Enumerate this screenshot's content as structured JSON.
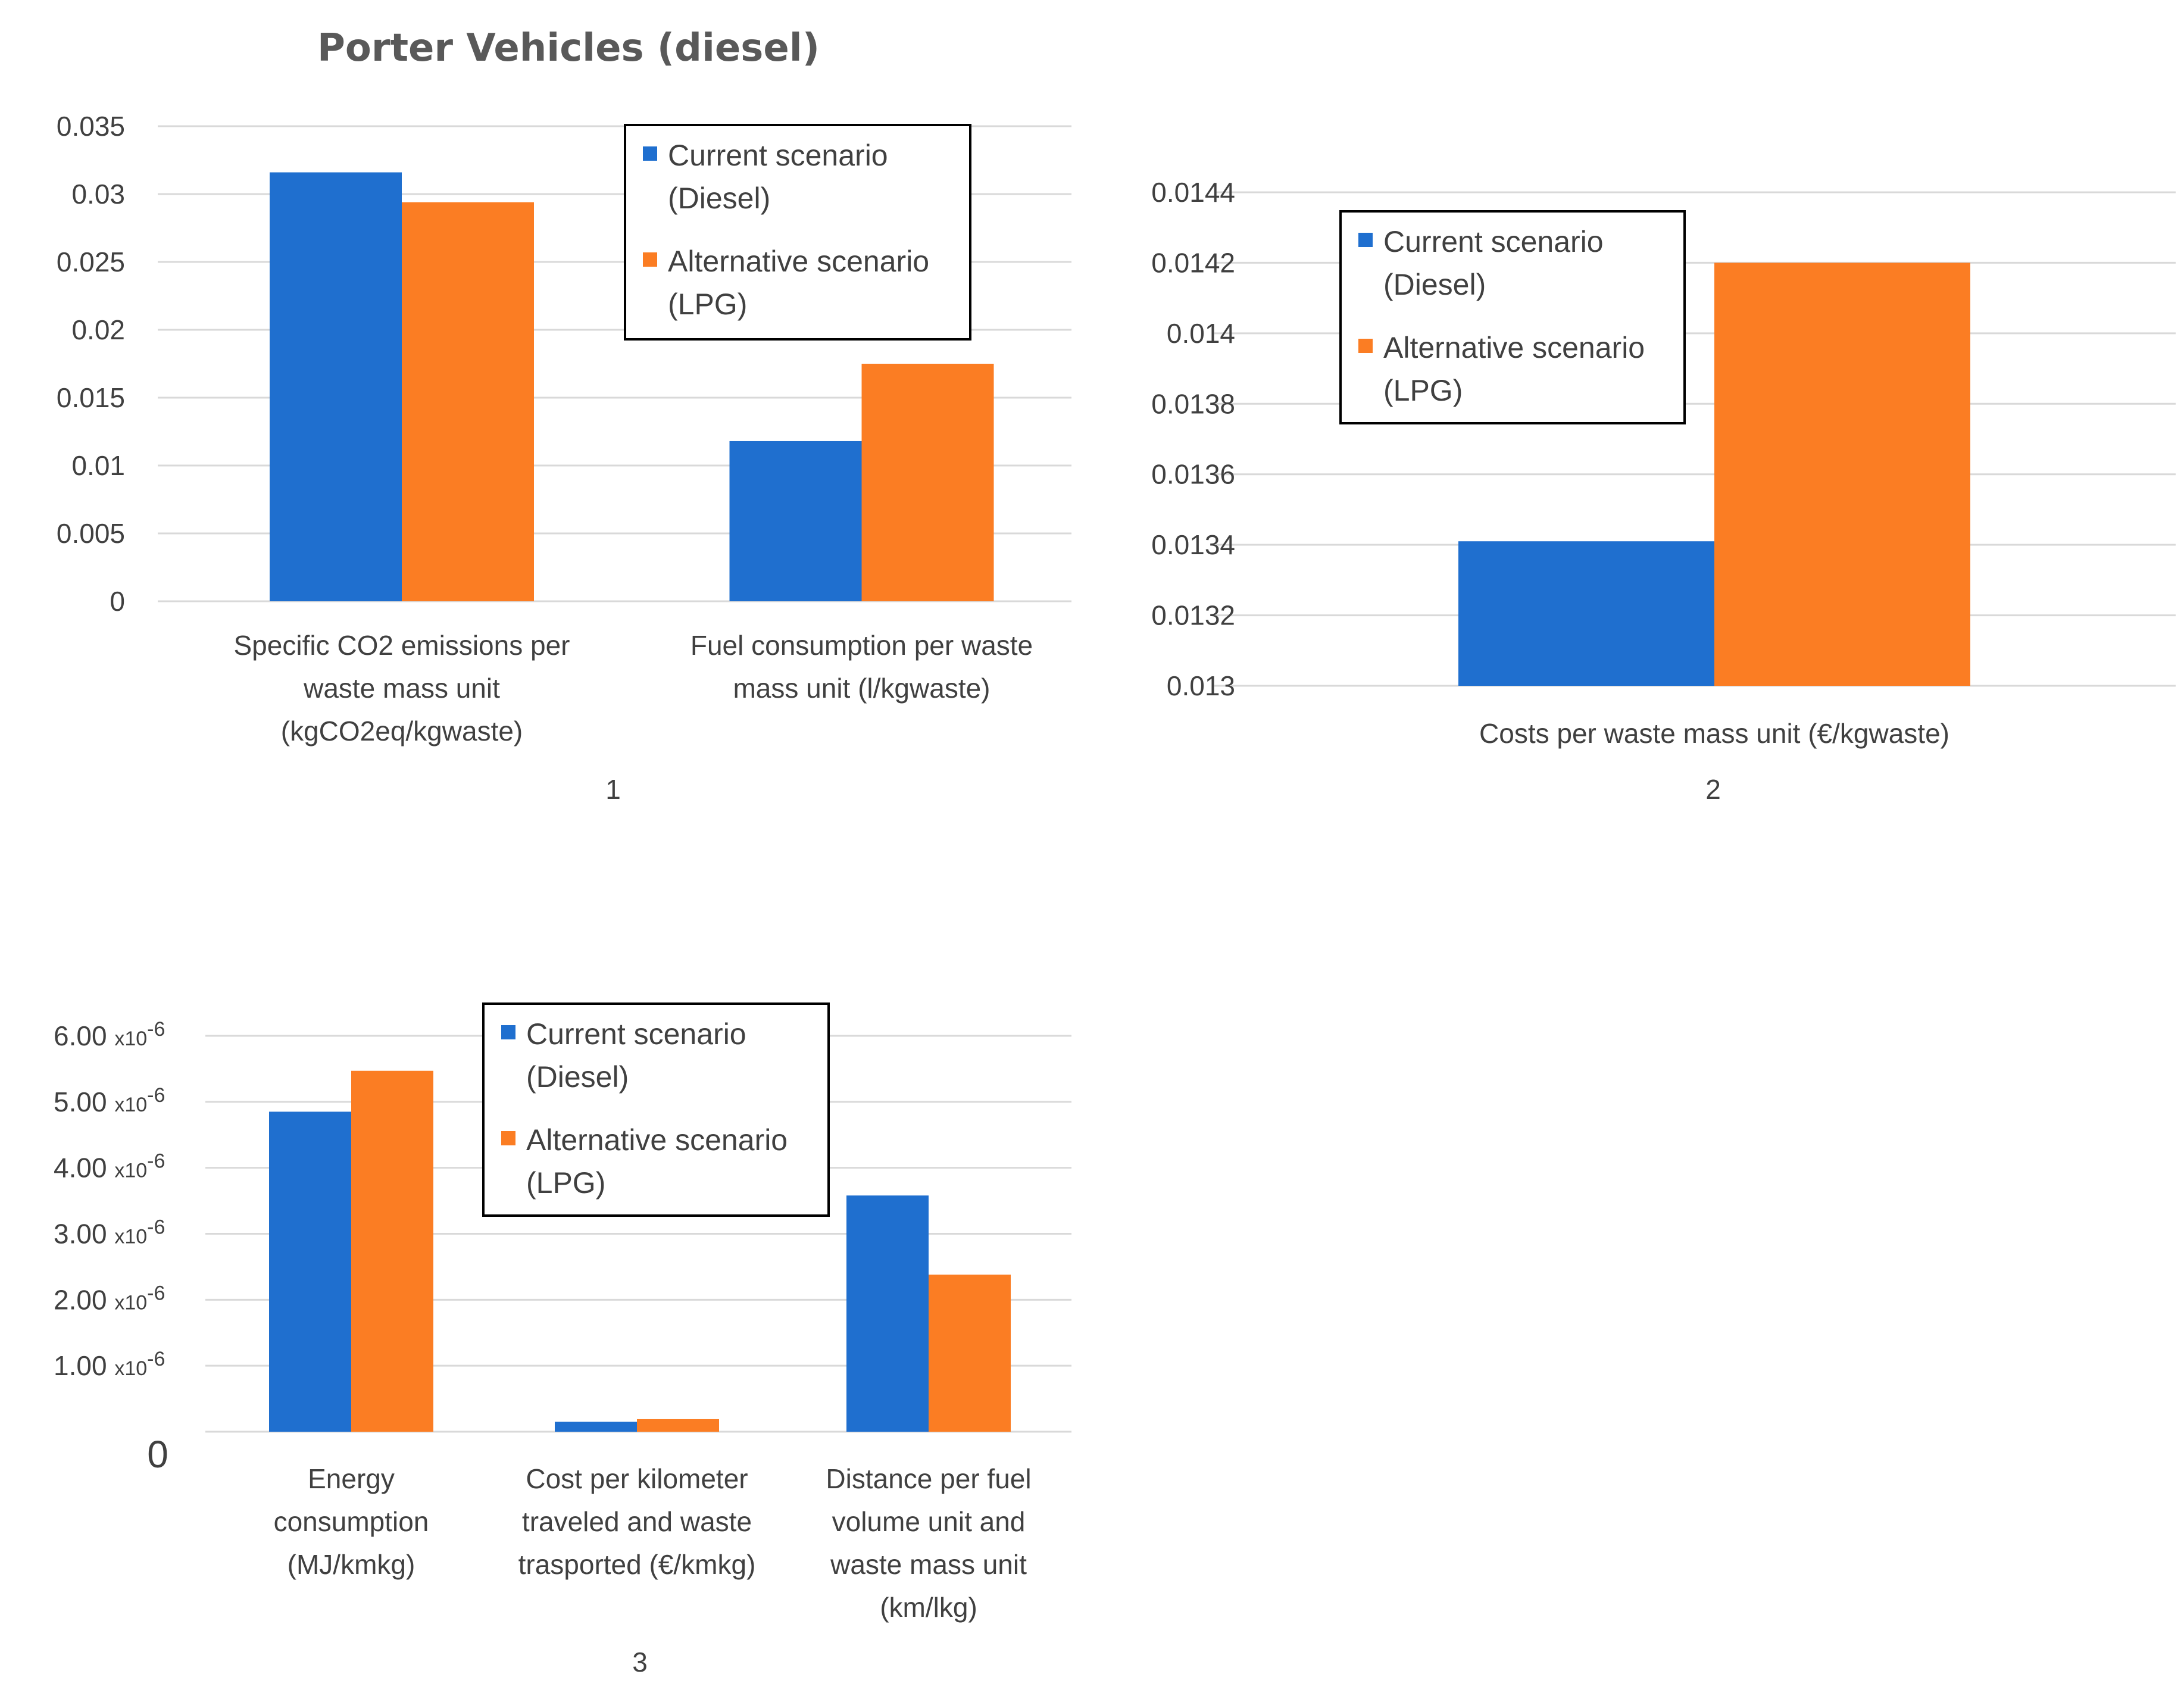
{
  "colors": {
    "current": "#1f6fcf",
    "alternative": "#fb7d23"
  },
  "title": "Porter Vehicles (diesel)",
  "chart_data": [
    {
      "type": "bar",
      "number_label": "1",
      "categories": [
        [
          "Specific CO2 emissions per",
          "waste mass unit",
          "(kgCO2eq/kgwaste)"
        ],
        [
          "Fuel consumption per waste",
          "mass unit (l/kgwaste)"
        ]
      ],
      "series": [
        {
          "name": "Current scenario (Diesel)",
          "values": [
            0.0316,
            0.0118
          ]
        },
        {
          "name": "Alternative scenario (LPG)",
          "values": [
            0.0294,
            0.0175
          ]
        }
      ],
      "ylim": [
        0,
        0.035
      ],
      "yticks": [
        "0.035",
        "0.03",
        "0.025",
        "0.02",
        "0.015",
        "0.01",
        "0.005",
        "0"
      ],
      "legend": [
        [
          "Current scenario",
          "(Diesel)"
        ],
        [
          "Alternative scenario",
          "(LPG)"
        ]
      ],
      "legend_position": "top-right"
    },
    {
      "type": "bar",
      "number_label": "2",
      "categories": [
        [
          "Costs per waste mass unit (€/kgwaste)"
        ]
      ],
      "series": [
        {
          "name": "Current scenario (Diesel)",
          "values": [
            0.01341
          ]
        },
        {
          "name": "Alternative scenario (LPG)",
          "values": [
            0.0142
          ]
        }
      ],
      "ylim": [
        0.013,
        0.0144
      ],
      "yticks": [
        "0.0144",
        "0.0142",
        "0.014",
        "0.0138",
        "0.0136",
        "0.0134",
        "0.0132",
        "0.013"
      ],
      "legend": [
        [
          "Current scenario",
          "(Diesel)"
        ],
        [
          "Alternative scenario",
          "(LPG)"
        ]
      ],
      "legend_position": "top-left"
    },
    {
      "type": "bar",
      "number_label": "3",
      "categories": [
        [
          "Energy",
          "consumption",
          "(MJ/kmkg)"
        ],
        [
          "Cost per kilometer",
          "traveled and waste",
          "trasported (€/kmkg)"
        ],
        [
          "Distance per fuel",
          "volume unit and",
          "waste mass unit",
          "(km/lkg)"
        ]
      ],
      "series": [
        {
          "name": "Current scenario (Diesel)",
          "values": [
            4.85e-06,
            1.5e-07,
            3.58e-06
          ]
        },
        {
          "name": "Alternative scenario (LPG)",
          "values": [
            5.47e-06,
            1.9e-07,
            2.38e-06
          ]
        }
      ],
      "ylim": [
        0,
        6e-06
      ],
      "yticks": [
        {
          "mantissa": "6.00",
          "exp": "x10",
          "power": "-6"
        },
        {
          "mantissa": "5.00",
          "exp": "x10",
          "power": "-6"
        },
        {
          "mantissa": "4.00",
          "exp": "x10",
          "power": "-6"
        },
        {
          "mantissa": "3.00",
          "exp": "x10",
          "power": "-6"
        },
        {
          "mantissa": "2.00",
          "exp": "x10",
          "power": "-6"
        },
        {
          "mantissa": "1.00",
          "exp": "x10",
          "power": "-6"
        }
      ],
      "zero_label": "0",
      "legend": [
        [
          "Current scenario",
          "(Diesel)"
        ],
        [
          "Alternative scenario",
          "(LPG)"
        ]
      ],
      "legend_position": "top-center"
    }
  ]
}
